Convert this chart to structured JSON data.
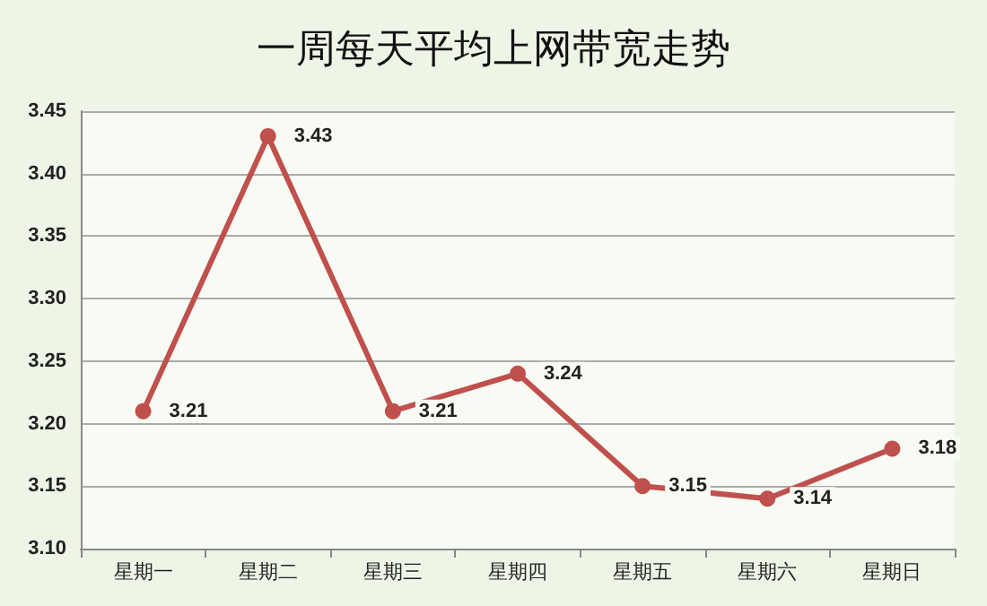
{
  "chart_data": {
    "type": "line",
    "title": "一周每天平均上网带宽走势",
    "categories": [
      "星期一",
      "星期二",
      "星期三",
      "星期四",
      "星期五",
      "星期六",
      "星期日"
    ],
    "series": [
      {
        "color": "#c0504d",
        "values": [
          3.21,
          3.43,
          3.21,
          3.24,
          3.15,
          3.14,
          3.18
        ]
      }
    ],
    "ylim": [
      3.1,
      3.45
    ],
    "yticks": [
      {
        "value": 3.1,
        "label": "3.10"
      },
      {
        "value": 3.15,
        "label": "3.15"
      },
      {
        "value": 3.2,
        "label": "3.20"
      },
      {
        "value": 3.25,
        "label": "3.25"
      },
      {
        "value": 3.3,
        "label": "3.30"
      },
      {
        "value": 3.35,
        "label": "3.35"
      },
      {
        "value": 3.4,
        "label": "3.40"
      },
      {
        "value": 3.45,
        "label": "3.45"
      }
    ],
    "grid": "y",
    "marker": "circle",
    "line_style": "solid",
    "data_labels": true
  }
}
